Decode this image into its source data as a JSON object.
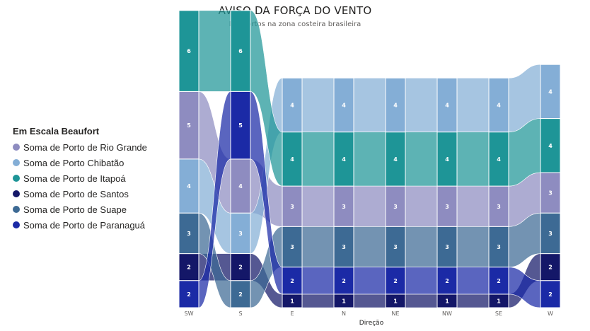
{
  "chart_data": {
    "type": "ribbon",
    "title": "AVISO DA FORÇA DO VENTO",
    "subtitle": "Em portos na zona costeira brasileira",
    "xlabel": "Direção",
    "legend_title": "Em Escala Beaufort",
    "legend_position": "left",
    "categories": [
      "SW",
      "S",
      "E",
      "N",
      "NE",
      "NW",
      "SE",
      "W"
    ],
    "series": [
      {
        "name": "Soma de Porto de Rio Grande",
        "color": "#8e8cc0",
        "values": [
          5,
          4,
          3,
          3,
          3,
          3,
          3,
          3
        ]
      },
      {
        "name": "Soma de Porto Chibatão",
        "color": "#84aed6",
        "values": [
          4,
          3,
          4,
          4,
          4,
          4,
          4,
          4
        ]
      },
      {
        "name": "Soma de Porto de Itapoá",
        "color": "#1e9597",
        "values": [
          6,
          6,
          4,
          4,
          4,
          4,
          4,
          4
        ]
      },
      {
        "name": "Soma de Porto de Santos",
        "color": "#141768",
        "values": [
          2,
          2,
          1,
          1,
          1,
          1,
          1,
          2
        ]
      },
      {
        "name": "Soma de Porto de Suape",
        "color": "#3d6a94",
        "values": [
          3,
          2,
          3,
          3,
          3,
          3,
          3,
          3
        ]
      },
      {
        "name": "Soma de Porto de Paranaguá",
        "color": "#1b2aa6",
        "values": [
          2,
          5,
          2,
          2,
          2,
          2,
          2,
          2
        ]
      }
    ]
  }
}
